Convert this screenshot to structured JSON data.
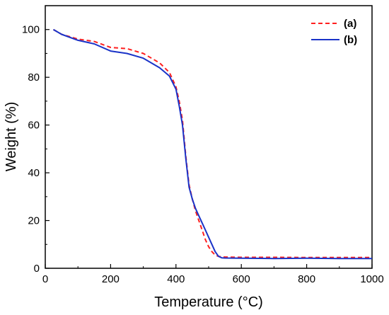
{
  "chart_data": {
    "type": "line",
    "xlabel": "Temperature (°C)",
    "ylabel": "Weight (%)",
    "xlim": [
      0,
      1000
    ],
    "ylim": [
      0,
      110
    ],
    "x_ticks": [
      0,
      200,
      400,
      600,
      800,
      1000
    ],
    "y_ticks": [
      0,
      20,
      40,
      60,
      80,
      100
    ],
    "grid": false,
    "legend_position": "top-right",
    "series": [
      {
        "name": "(a)",
        "color": "#ff2020",
        "style": "dashed",
        "x": [
          25,
          50,
          100,
          150,
          200,
          250,
          300,
          350,
          380,
          400,
          410,
          420,
          430,
          440,
          450,
          460,
          470,
          480,
          490,
          500,
          510,
          520,
          530,
          540,
          550,
          600,
          700,
          800,
          900,
          1000
        ],
        "y": [
          100,
          98,
          96,
          95,
          92.5,
          92,
          90,
          86,
          82,
          76,
          70,
          62,
          47,
          35,
          29,
          24,
          20,
          16,
          12,
          9,
          7,
          5.5,
          5,
          4.8,
          4.7,
          4.6,
          4.6,
          4.5,
          4.5,
          4.5
        ]
      },
      {
        "name": "(b)",
        "color": "#1a33c8",
        "style": "solid",
        "x": [
          25,
          50,
          100,
          150,
          200,
          250,
          300,
          350,
          380,
          400,
          410,
          420,
          430,
          440,
          450,
          460,
          470,
          480,
          490,
          500,
          510,
          520,
          530,
          540,
          550,
          600,
          700,
          800,
          900,
          1000
        ],
        "y": [
          100,
          98,
          95.5,
          94,
          91,
          90,
          88,
          84,
          80.5,
          75,
          68,
          60,
          46,
          34,
          29,
          25,
          22,
          19,
          16,
          13,
          10,
          7,
          5,
          4.4,
          4.3,
          4.2,
          4.1,
          4.2,
          4.1,
          4.1
        ]
      }
    ]
  }
}
